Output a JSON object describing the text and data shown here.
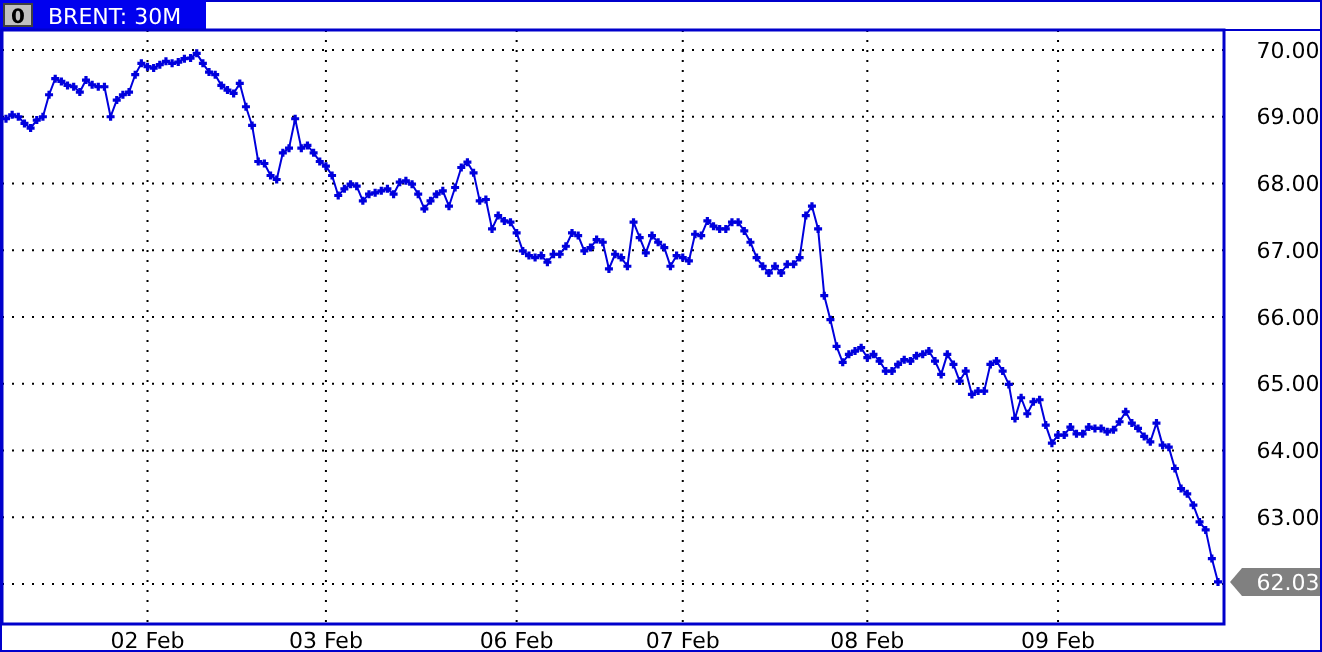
{
  "chart_data": {
    "type": "line",
    "title": "BRENT: 30M",
    "annotations": [
      "0"
    ],
    "ylim": [
      61.4,
      70.3
    ],
    "categories": [
      null,
      null,
      null,
      null,
      null,
      null,
      null,
      null,
      null,
      null,
      null,
      null,
      null,
      null,
      null,
      null,
      null,
      null,
      null,
      null,
      null,
      null,
      null,
      "02 Feb",
      null,
      null,
      null,
      null,
      null,
      null,
      null,
      null,
      null,
      null,
      null,
      null,
      null,
      null,
      null,
      null,
      null,
      null,
      null,
      null,
      null,
      null,
      null,
      null,
      null,
      null,
      null,
      null,
      "03 Feb",
      null,
      null,
      null,
      null,
      null,
      null,
      null,
      null,
      null,
      null,
      null,
      null,
      null,
      null,
      null,
      null,
      null,
      null,
      null,
      null,
      null,
      null,
      null,
      null,
      null,
      null,
      null,
      null,
      null,
      null,
      "06 Feb",
      null,
      null,
      null,
      null,
      null,
      null,
      null,
      null,
      null,
      null,
      null,
      null,
      null,
      null,
      null,
      null,
      null,
      null,
      null,
      null,
      null,
      null,
      null,
      null,
      null,
      null,
      "07 Feb",
      null,
      null,
      null,
      null,
      null,
      null,
      null,
      null,
      null,
      null,
      null,
      null,
      null,
      null,
      null,
      null,
      null,
      null,
      null,
      null,
      null,
      null,
      null,
      null,
      null,
      null,
      null,
      null,
      null,
      "08 Feb",
      null,
      null,
      null,
      null,
      null,
      null,
      null,
      null,
      null,
      null,
      null,
      null,
      null,
      null,
      null,
      null,
      null,
      null,
      null,
      null,
      null,
      null,
      null,
      null,
      null,
      null,
      null,
      null,
      null,
      null,
      "09 Feb",
      null,
      null,
      null,
      null,
      null,
      null,
      null,
      null,
      null,
      null,
      null,
      null,
      null,
      null,
      null,
      null,
      null,
      null,
      null,
      null,
      null,
      null,
      null,
      null,
      null,
      null
    ],
    "yticks": [
      {
        "value": 62,
        "label": null
      },
      {
        "value": 63,
        "label": "63.00"
      },
      {
        "value": 64,
        "label": "64.00"
      },
      {
        "value": 65,
        "label": "65.00"
      },
      {
        "value": 66,
        "label": "66.00"
      },
      {
        "value": 67,
        "label": "67.00"
      },
      {
        "value": 68,
        "label": "68.00"
      },
      {
        "value": 69,
        "label": "69.00"
      },
      {
        "value": 70,
        "label": "70.00"
      }
    ],
    "grid": true,
    "marker": "cross",
    "line_style": "solid",
    "series": [
      {
        "color": "#0000dd",
        "value_labels": [
          null,
          null,
          null,
          null,
          null,
          null,
          null,
          null,
          null,
          null,
          null,
          null,
          null,
          null,
          null,
          null,
          null,
          null,
          null,
          null,
          null,
          null,
          null,
          null,
          null,
          null,
          null,
          null,
          null,
          null,
          null,
          null,
          null,
          null,
          null,
          null,
          null,
          null,
          null,
          null,
          null,
          null,
          null,
          null,
          null,
          null,
          null,
          null,
          null,
          null,
          null,
          null,
          null,
          null,
          null,
          null,
          null,
          null,
          null,
          null,
          null,
          null,
          null,
          null,
          null,
          null,
          null,
          null,
          null,
          null,
          null,
          null,
          null,
          null,
          null,
          null,
          null,
          null,
          null,
          null,
          null,
          null,
          null,
          null,
          null,
          null,
          null,
          null,
          null,
          null,
          null,
          null,
          null,
          null,
          null,
          null,
          null,
          null,
          null,
          null,
          null,
          null,
          null,
          null,
          null,
          null,
          null,
          null,
          null,
          null,
          null,
          null,
          null,
          null,
          null,
          null,
          null,
          null,
          null,
          null,
          null,
          null,
          null,
          null,
          null,
          null,
          null,
          null,
          null,
          null,
          null,
          null,
          null,
          null,
          null,
          null,
          null,
          null,
          null,
          null,
          null,
          null,
          null,
          null,
          null,
          null,
          null,
          null,
          null,
          null,
          null,
          null,
          null,
          null,
          null,
          null,
          null,
          null,
          null,
          null,
          null,
          null,
          null,
          null,
          null,
          null,
          null,
          null,
          null,
          null,
          null,
          null,
          null,
          null,
          null,
          null,
          null,
          null,
          null,
          null,
          null,
          null,
          null,
          null,
          null,
          null,
          null,
          null,
          null,
          null,
          null,
          null,
          null,
          null,
          null,
          null,
          null,
          "62.03"
        ],
        "values": [
          68.97,
          69.03,
          69.0,
          68.9,
          68.83,
          68.95,
          69.0,
          69.33,
          69.57,
          69.53,
          69.47,
          69.45,
          69.37,
          69.55,
          69.48,
          69.45,
          69.45,
          69.0,
          69.25,
          69.33,
          69.37,
          69.63,
          69.8,
          69.75,
          69.73,
          69.78,
          69.83,
          69.8,
          69.82,
          69.87,
          69.88,
          69.95,
          69.8,
          69.67,
          69.63,
          69.47,
          69.4,
          69.35,
          69.5,
          69.15,
          68.87,
          68.33,
          68.3,
          68.12,
          68.06,
          68.46,
          68.53,
          68.97,
          68.53,
          68.57,
          68.46,
          68.33,
          68.26,
          68.12,
          67.82,
          67.92,
          67.99,
          67.96,
          67.74,
          67.84,
          67.86,
          67.89,
          67.92,
          67.84,
          68.02,
          68.04,
          67.99,
          67.84,
          67.62,
          67.74,
          67.84,
          67.89,
          67.66,
          67.94,
          68.24,
          68.32,
          68.16,
          67.74,
          67.76,
          67.32,
          67.52,
          67.44,
          67.42,
          67.26,
          66.99,
          66.92,
          66.89,
          66.92,
          66.82,
          66.94,
          66.94,
          67.06,
          67.26,
          67.22,
          66.99,
          67.04,
          67.16,
          67.12,
          66.72,
          66.94,
          66.89,
          66.76,
          67.42,
          67.19,
          66.96,
          67.22,
          67.12,
          67.04,
          66.76,
          66.92,
          66.89,
          66.84,
          67.24,
          67.22,
          67.44,
          67.36,
          67.32,
          67.32,
          67.42,
          67.42,
          67.29,
          67.12,
          66.89,
          66.76,
          66.66,
          66.76,
          66.66,
          66.79,
          66.79,
          66.89,
          67.52,
          67.66,
          67.32,
          66.32,
          65.96,
          65.56,
          65.32,
          65.44,
          65.49,
          65.54,
          65.39,
          65.44,
          65.34,
          65.19,
          65.19,
          65.29,
          65.36,
          65.34,
          65.42,
          65.44,
          65.49,
          65.34,
          65.14,
          65.44,
          65.29,
          65.04,
          65.19,
          64.84,
          64.89,
          64.89,
          65.29,
          65.34,
          65.19,
          64.99,
          64.48,
          64.79,
          64.55,
          64.73,
          64.76,
          64.38,
          64.11,
          64.23,
          64.23,
          64.35,
          64.25,
          64.25,
          64.35,
          64.33,
          64.33,
          64.28,
          64.31,
          64.43,
          64.58,
          64.41,
          64.33,
          64.21,
          64.13,
          64.41,
          64.08,
          64.05,
          63.73,
          63.43,
          63.35,
          63.18,
          62.93,
          62.81,
          62.38,
          62.03
        ]
      }
    ]
  }
}
